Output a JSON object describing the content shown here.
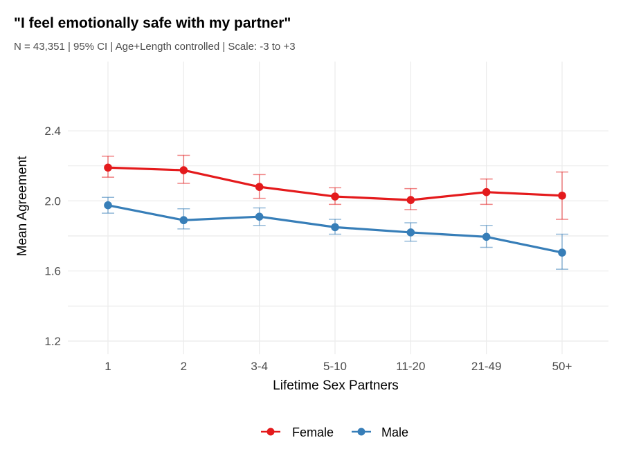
{
  "chart_data": {
    "type": "line",
    "title": "\"I feel emotionally safe with my partner\"",
    "subtitle": "N = 43,351 | 95% CI | Age+Length controlled | Scale: -3 to +3",
    "xlabel": "Lifetime Sex Partners",
    "ylabel": "Mean Agreement",
    "categories": [
      "1",
      "2",
      "3-4",
      "5-10",
      "11-20",
      "21-49",
      "50+"
    ],
    "ylim": [
      1.125,
      2.795
    ],
    "yticks": [
      1.2,
      1.6,
      2.0,
      2.4
    ],
    "ytick_labels": [
      "1.2",
      "1.6",
      "2.0",
      "2.4"
    ],
    "grid": true,
    "legend_position": "bottom",
    "series": [
      {
        "name": "Female",
        "color": "#e41a1c",
        "values": [
          2.19,
          2.175,
          2.08,
          2.025,
          2.005,
          2.05,
          2.03
        ],
        "ci_low": [
          2.135,
          2.1,
          2.015,
          1.98,
          1.95,
          1.98,
          1.895
        ],
        "ci_high": [
          2.255,
          2.26,
          2.15,
          2.075,
          2.07,
          2.125,
          2.165
        ]
      },
      {
        "name": "Male",
        "color": "#377eb8",
        "values": [
          1.975,
          1.89,
          1.91,
          1.85,
          1.82,
          1.795,
          1.705
        ],
        "ci_low": [
          1.93,
          1.84,
          1.86,
          1.81,
          1.77,
          1.735,
          1.61
        ],
        "ci_high": [
          2.02,
          1.955,
          1.96,
          1.895,
          1.875,
          1.86,
          1.81
        ]
      }
    ]
  }
}
